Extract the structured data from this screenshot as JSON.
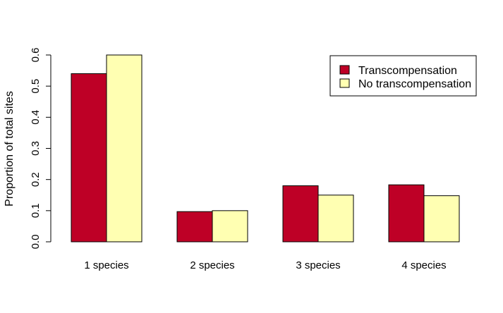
{
  "chart_data": {
    "type": "bar",
    "title": "",
    "xlabel": "",
    "ylabel": "Proportion of total sites",
    "ylim": [
      0,
      0.6
    ],
    "yticks": [
      "0.0",
      "0.1",
      "0.2",
      "0.3",
      "0.4",
      "0.5",
      "0.6"
    ],
    "grid": false,
    "legend_position": "top-right",
    "categories": [
      "1 species",
      "2 species",
      "3 species",
      "4 species"
    ],
    "series": [
      {
        "name": "Transcompensation",
        "color": "#BE0026",
        "values": [
          0.54,
          0.097,
          0.18,
          0.183
        ]
      },
      {
        "name": "No transcompensation",
        "color": "#FFFFB2",
        "values": [
          0.6,
          0.1,
          0.15,
          0.148
        ]
      }
    ]
  }
}
